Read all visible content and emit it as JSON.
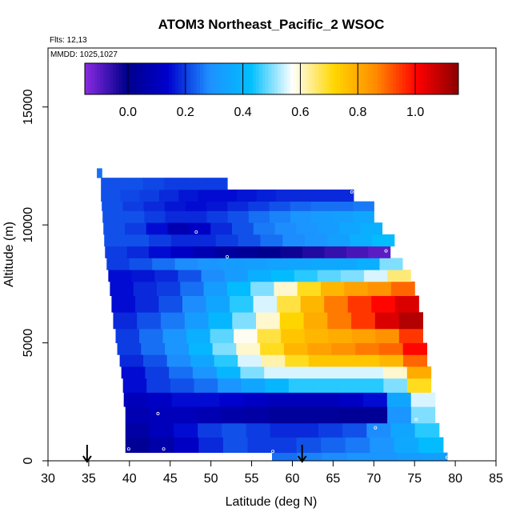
{
  "chart_data": {
    "type": "heatmap",
    "title": "ATOM3 Northeast_Pacific_2 WSOC",
    "flights_label": "Flts: 12,13",
    "dates_label": "MMDD: 1025,1027",
    "xlabel": "Latitude (deg N)",
    "ylabel": "Altitude (m)",
    "xlim": [
      30,
      85
    ],
    "ylim": [
      0,
      17500
    ],
    "xticks": [
      30,
      35,
      40,
      45,
      50,
      55,
      60,
      65,
      70,
      75,
      80,
      85
    ],
    "yticks": [
      0,
      5000,
      10000,
      15000
    ],
    "grid": false,
    "colorbar": {
      "position": "top",
      "range": [
        -0.15,
        1.15
      ],
      "ticks": [
        0.0,
        0.2,
        0.4,
        0.6,
        0.8,
        1.0
      ],
      "tick_labels": [
        "0.0",
        "0.2",
        "0.4",
        "0.6",
        "0.8",
        "1.0"
      ],
      "colors": [
        "#8b2be2",
        "#00008b",
        "#0000cd",
        "#1e90ff",
        "#00bfff",
        "#ffffff",
        "#ffd700",
        "#ff8c00",
        "#ff0000",
        "#8b0000"
      ]
    },
    "arrows_latitude": [
      34.8,
      61.2
    ],
    "bands": [
      {
        "alt_low": 0,
        "alt_high": 350,
        "lat_start": 57.5,
        "lat_end": 79,
        "values": [
          0.25,
          0.27,
          0.28,
          0.3,
          0.3,
          0.32,
          0.33
        ]
      },
      {
        "alt_low": 350,
        "alt_high": 1000,
        "lat_start": 39.5,
        "lat_end": 78.5,
        "values": [
          0.02,
          0.06,
          0.12,
          0.18,
          0.22,
          0.2,
          0.2,
          0.22,
          0.24,
          0.26,
          0.3,
          0.36,
          0.42
        ]
      },
      {
        "alt_low": 1000,
        "alt_high": 1600,
        "lat_start": 39.5,
        "lat_end": 78,
        "values": [
          0.05,
          0.1,
          0.15,
          0.2,
          0.22,
          0.2,
          0.18,
          0.18,
          0.2,
          0.22,
          0.28,
          0.35,
          0.45
        ]
      },
      {
        "alt_low": 1600,
        "alt_high": 2300,
        "lat_start": 39.5,
        "lat_end": 77.5,
        "values": [
          0.08,
          0.1,
          0.1,
          0.08,
          0.06,
          0.05,
          0.03,
          0.03,
          0.03,
          0.02,
          0.02,
          0.3,
          0.5
        ]
      },
      {
        "alt_low": 2300,
        "alt_high": 2900,
        "lat_start": 39.3,
        "lat_end": 77.5,
        "values": [
          0.1,
          0.12,
          0.15,
          0.15,
          0.14,
          0.12,
          0.1,
          0.1,
          0.1,
          0.12,
          0.15,
          0.35,
          0.55
        ]
      },
      {
        "alt_low": 2900,
        "alt_high": 3500,
        "lat_start": 39.2,
        "lat_end": 77,
        "values": [
          0.15,
          0.2,
          0.22,
          0.25,
          0.3,
          0.35,
          0.4,
          0.45,
          0.45,
          0.45,
          0.45,
          0.5,
          0.7
        ]
      },
      {
        "alt_low": 3500,
        "alt_high": 4000,
        "lat_start": 39,
        "lat_end": 77,
        "values": [
          0.15,
          0.2,
          0.25,
          0.3,
          0.4,
          0.5,
          0.55,
          0.55,
          0.55,
          0.55,
          0.55,
          0.6,
          0.8
        ]
      },
      {
        "alt_low": 4000,
        "alt_high": 4500,
        "lat_start": 38.8,
        "lat_end": 76.5,
        "values": [
          0.18,
          0.22,
          0.28,
          0.35,
          0.45,
          0.55,
          0.62,
          0.7,
          0.75,
          0.75,
          0.75,
          0.78,
          0.9
        ]
      },
      {
        "alt_low": 4500,
        "alt_high": 5000,
        "lat_start": 38.5,
        "lat_end": 76.5,
        "values": [
          0.2,
          0.25,
          0.3,
          0.4,
          0.5,
          0.6,
          0.7,
          0.78,
          0.82,
          0.85,
          0.88,
          0.9,
          1.0
        ]
      },
      {
        "alt_low": 5000,
        "alt_high": 5600,
        "lat_start": 38.3,
        "lat_end": 76,
        "values": [
          0.2,
          0.25,
          0.3,
          0.38,
          0.48,
          0.58,
          0.68,
          0.75,
          0.78,
          0.8,
          0.82,
          0.85,
          0.95
        ]
      },
      {
        "alt_low": 5600,
        "alt_high": 6300,
        "lat_start": 38,
        "lat_end": 76,
        "values": [
          0.18,
          0.22,
          0.26,
          0.32,
          0.4,
          0.5,
          0.6,
          0.72,
          0.8,
          0.88,
          0.95,
          1.05,
          1.1
        ]
      },
      {
        "alt_low": 6300,
        "alt_high": 7000,
        "lat_start": 37.8,
        "lat_end": 75.5,
        "values": [
          0.15,
          0.18,
          0.22,
          0.28,
          0.35,
          0.45,
          0.55,
          0.68,
          0.78,
          0.88,
          0.95,
          1.0,
          1.05
        ]
      },
      {
        "alt_low": 7000,
        "alt_high": 7600,
        "lat_start": 37.6,
        "lat_end": 75,
        "values": [
          0.15,
          0.18,
          0.2,
          0.25,
          0.32,
          0.42,
          0.5,
          0.6,
          0.7,
          0.78,
          0.82,
          0.85,
          0.9
        ]
      },
      {
        "alt_low": 7600,
        "alt_high": 8100,
        "lat_start": 37.4,
        "lat_end": 74.5,
        "values": [
          0.15,
          0.16,
          0.18,
          0.22,
          0.28,
          0.32,
          0.38,
          0.42,
          0.45,
          0.48,
          0.5,
          0.55,
          0.65
        ]
      },
      {
        "alt_low": 8100,
        "alt_high": 8600,
        "lat_start": 37.2,
        "lat_end": 73.5,
        "values": [
          0.2,
          0.22,
          0.25,
          0.28,
          0.3,
          0.32,
          0.33,
          0.34,
          0.35,
          0.36,
          0.36,
          0.38,
          0.5
        ]
      },
      {
        "alt_low": 8600,
        "alt_high": 9100,
        "lat_start": 37,
        "lat_end": 72,
        "values": [
          0.2,
          0.18,
          0.15,
          0.12,
          0.08,
          0.04,
          0.02,
          0.0,
          -0.02,
          -0.04,
          -0.06,
          -0.08,
          -0.1
        ]
      },
      {
        "alt_low": 9100,
        "alt_high": 9600,
        "lat_start": 36.9,
        "lat_end": 72.5,
        "values": [
          0.22,
          0.22,
          0.2,
          0.18,
          0.18,
          0.2,
          0.22,
          0.25,
          0.28,
          0.3,
          0.33,
          0.38,
          0.42
        ]
      },
      {
        "alt_low": 9600,
        "alt_high": 10100,
        "lat_start": 36.8,
        "lat_end": 71,
        "values": [
          0.22,
          0.2,
          0.15,
          0.08,
          0.12,
          0.18,
          0.22,
          0.26,
          0.28,
          0.3,
          0.32,
          0.35,
          0.38
        ]
      },
      {
        "alt_low": 10100,
        "alt_high": 10600,
        "lat_start": 36.7,
        "lat_end": 70,
        "values": [
          0.22,
          0.22,
          0.2,
          0.18,
          0.18,
          0.2,
          0.22,
          0.25,
          0.27,
          0.3,
          0.32,
          0.33,
          0.35
        ]
      },
      {
        "alt_low": 10600,
        "alt_high": 11000,
        "lat_start": 36.6,
        "lat_end": 70,
        "values": [
          0.22,
          0.2,
          0.18,
          0.16,
          0.15,
          0.16,
          0.18,
          0.2,
          0.22,
          0.24,
          0.25,
          0.25,
          0.26
        ]
      },
      {
        "alt_low": 11000,
        "alt_high": 11500,
        "lat_start": 36.5,
        "lat_end": 67.5,
        "values": [
          0.22,
          0.21,
          0.2,
          0.18,
          0.16,
          0.15,
          0.15,
          0.16,
          0.17,
          0.18,
          0.18,
          0.18,
          0.18
        ]
      },
      {
        "alt_low": 11500,
        "alt_high": 12000,
        "lat_start": 36.5,
        "lat_end": 52,
        "values": [
          0.22,
          0.22,
          0.21,
          0.2,
          0.2,
          0.2
        ]
      },
      {
        "alt_low": 12000,
        "alt_high": 12400,
        "lat_start": 36,
        "lat_end": 36.6,
        "values": [
          0.25
        ]
      }
    ],
    "points": [
      {
        "lat": 48.2,
        "alt": 9700
      },
      {
        "lat": 52.0,
        "alt": 8650
      },
      {
        "lat": 67.3,
        "alt": 11400
      },
      {
        "lat": 71.5,
        "alt": 8900
      },
      {
        "lat": 76.3,
        "alt": 6150
      },
      {
        "lat": 43.5,
        "alt": 2000
      },
      {
        "lat": 70.2,
        "alt": 1400
      },
      {
        "lat": 75.2,
        "alt": 1750
      },
      {
        "lat": 44.2,
        "alt": 500
      },
      {
        "lat": 39.9,
        "alt": 500
      },
      {
        "lat": 57.6,
        "alt": 400
      },
      {
        "lat": 79.0,
        "alt": 150
      }
    ]
  }
}
